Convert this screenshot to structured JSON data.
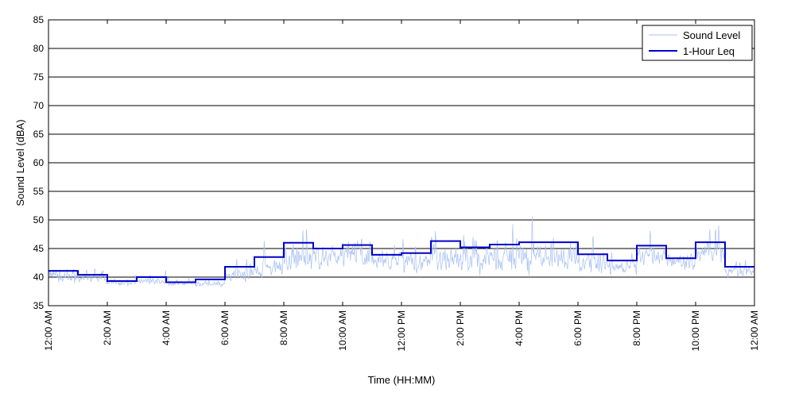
{
  "chart_data": {
    "type": "line",
    "title": "",
    "xlabel": "Time (HH:MM)",
    "ylabel": "Sound Level (dBA)",
    "ylim": [
      35,
      85
    ],
    "yticks": [
      35,
      40,
      45,
      50,
      55,
      60,
      65,
      70,
      75,
      80,
      85
    ],
    "xlim": [
      0,
      24
    ],
    "xticks": [
      0,
      2,
      4,
      6,
      8,
      10,
      12,
      14,
      16,
      18,
      20,
      22,
      24
    ],
    "xtick_labels": [
      "12:00 AM",
      "2:00 AM",
      "4:00 AM",
      "6:00 AM",
      "8:00 AM",
      "10:00 AM",
      "12:00 PM",
      "2:00 PM",
      "4:00 PM",
      "6:00 PM",
      "8:00 PM",
      "10:00 PM",
      "12:00 AM"
    ],
    "grid": "horizontal",
    "legend_position": "top-right",
    "series": [
      {
        "name": "Sound Level",
        "color": "#a9c1f2",
        "style": "thin-line",
        "hourly_mean": [
          40.2,
          39.8,
          39.0,
          39.3,
          39.0,
          38.8,
          40.5,
          41.5,
          43.5,
          43.5,
          44.0,
          42.8,
          42.5,
          43.5,
          43.0,
          43.5,
          43.8,
          43.5,
          42.5,
          41.5,
          43.8,
          42.5,
          44.5,
          41.0
        ],
        "hourly_spread": [
          2.0,
          1.2,
          0.8,
          1.0,
          0.8,
          0.8,
          1.5,
          2.5,
          3.5,
          3.0,
          3.5,
          2.5,
          2.5,
          3.5,
          3.5,
          3.5,
          3.5,
          3.0,
          2.5,
          2.0,
          2.5,
          2.0,
          3.0,
          1.5
        ]
      },
      {
        "name": "1-Hour Leq",
        "color": "#0000cc",
        "style": "step",
        "x": [
          0,
          1,
          2,
          3,
          4,
          5,
          6,
          7,
          8,
          9,
          10,
          11,
          12,
          13,
          14,
          15,
          16,
          17,
          18,
          19,
          20,
          21,
          22,
          23
        ],
        "values": [
          41.1,
          40.4,
          39.3,
          40.0,
          39.1,
          39.6,
          41.8,
          43.5,
          46.0,
          45.0,
          45.6,
          43.9,
          44.2,
          46.3,
          45.2,
          45.7,
          46.1,
          46.1,
          44.0,
          42.9,
          45.5,
          43.3,
          46.1,
          41.8
        ]
      }
    ]
  }
}
